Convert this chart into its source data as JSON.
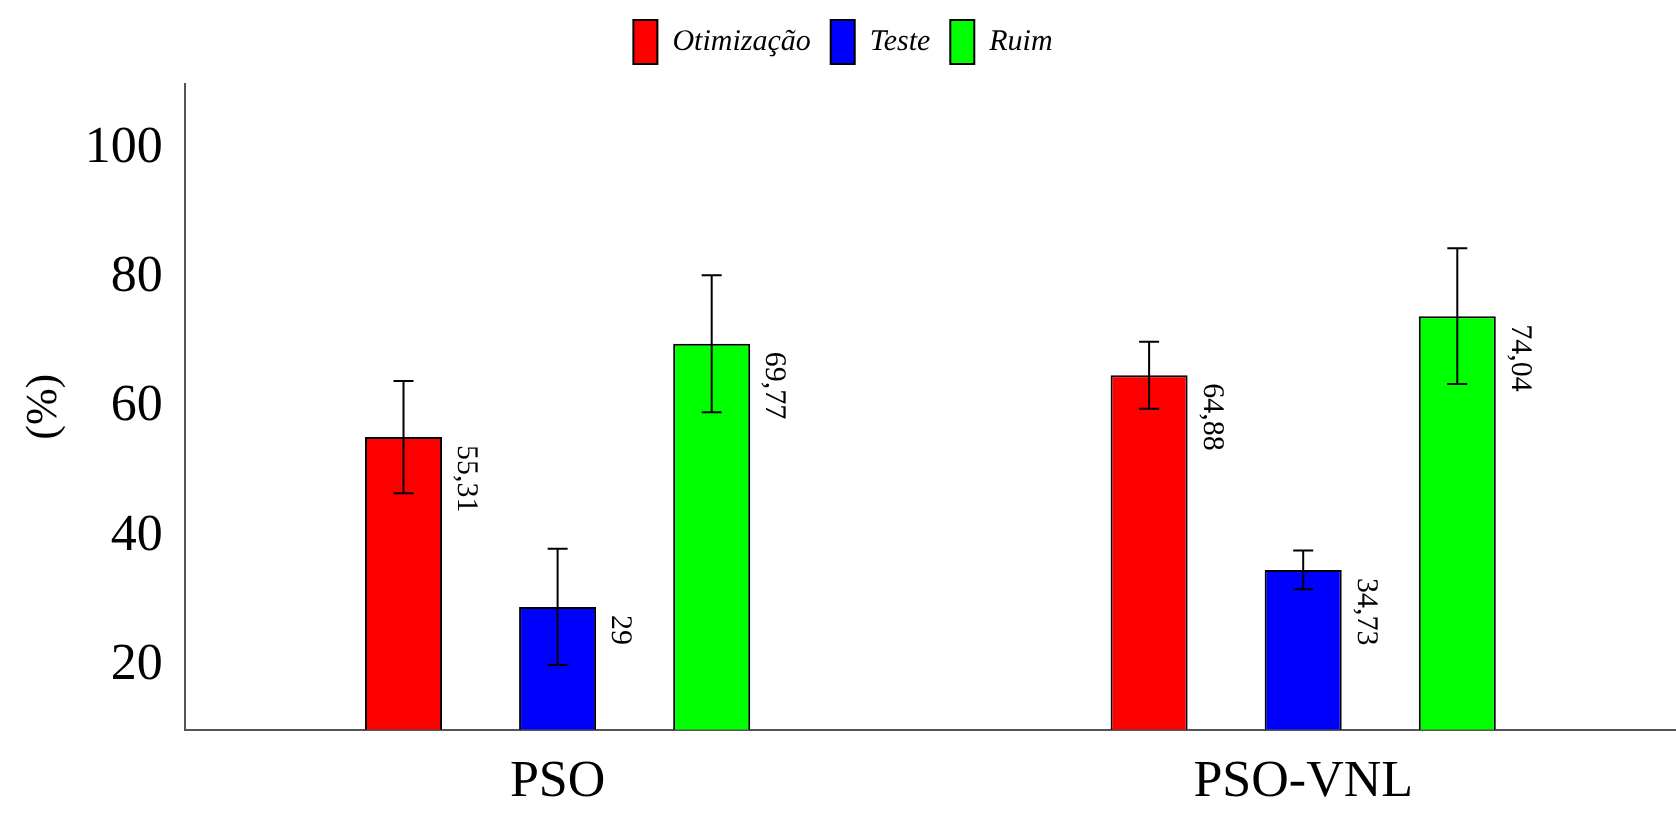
{
  "chart_data": {
    "type": "bar",
    "ylabel": "(%)",
    "categories": [
      "PSO",
      "PSO-VNL"
    ],
    "series": [
      {
        "name": "Otimização",
        "color": "#ff0000",
        "values": [
          55.31,
          64.88
        ],
        "errors": [
          8.7,
          5.2
        ],
        "value_labels": [
          "55,31",
          "64,88"
        ]
      },
      {
        "name": "Teste",
        "color": "#0000ff",
        "values": [
          29,
          34.73
        ],
        "errors": [
          9,
          3
        ],
        "value_labels": [
          "29",
          "34,73"
        ]
      },
      {
        "name": "Ruim",
        "color": "#00ff00",
        "values": [
          69.77,
          74.04
        ],
        "errors": [
          10.6,
          10.5
        ],
        "value_labels": [
          "69,77",
          "74,04"
        ]
      }
    ],
    "ylim": [
      10,
      110
    ],
    "yticks": [
      20,
      40,
      60,
      80,
      100
    ],
    "grid": false,
    "legend": "top"
  }
}
